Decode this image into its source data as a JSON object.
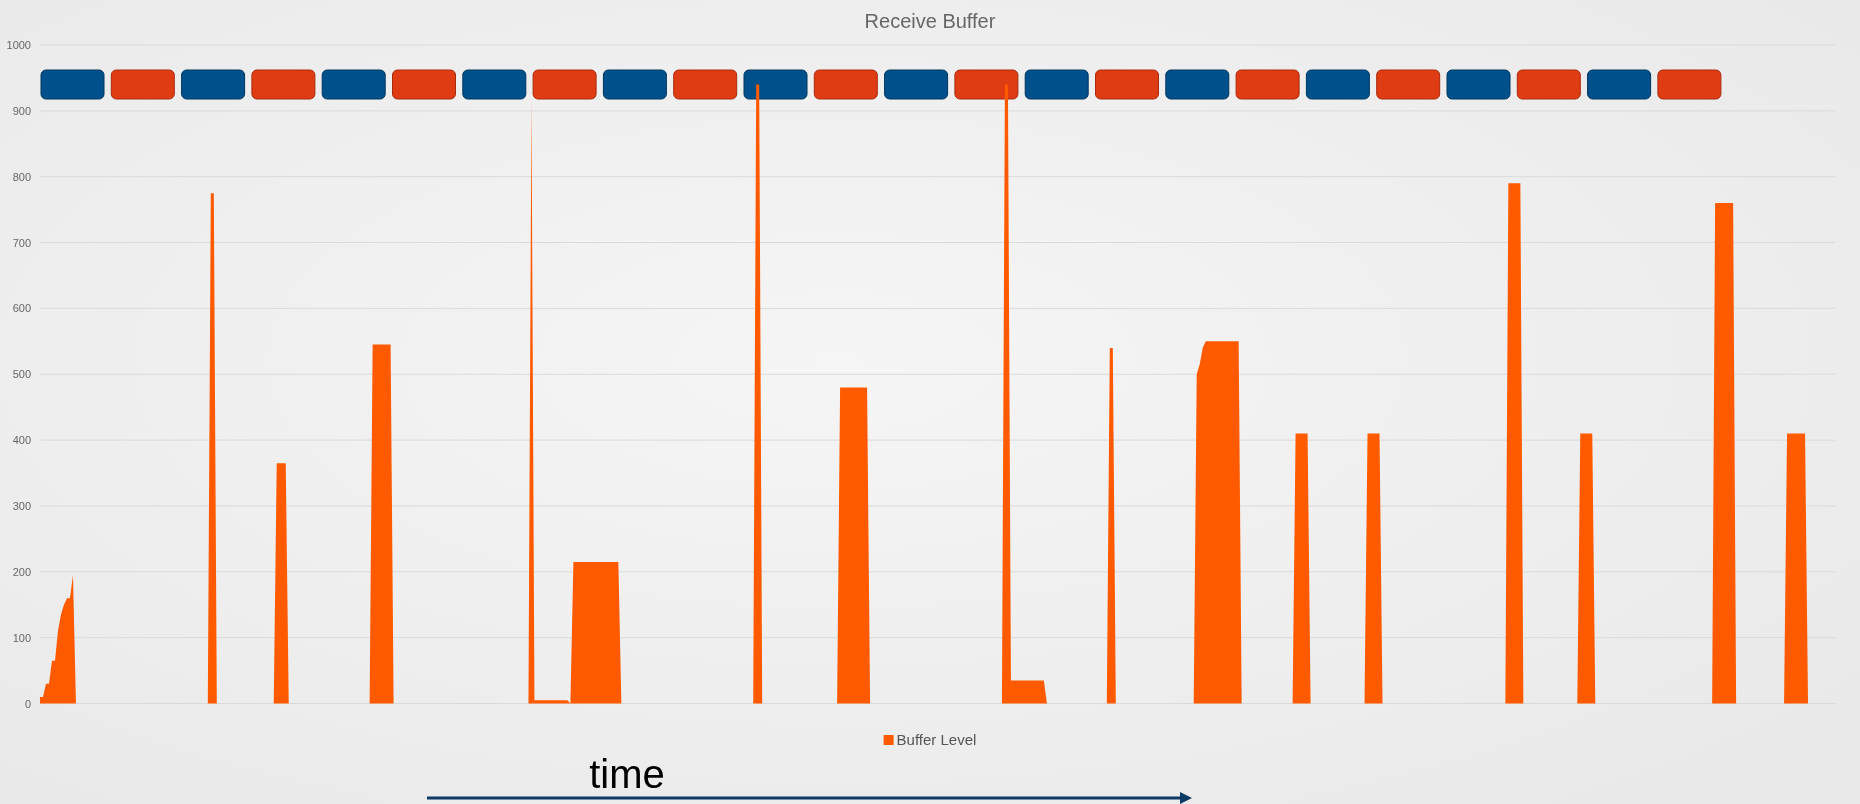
{
  "chart_data": {
    "type": "area",
    "title": "Receive Buffer",
    "annotations": [
      "time"
    ],
    "ylim": [
      0,
      1000
    ],
    "yticks": [
      0,
      100,
      200,
      300,
      400,
      500,
      600,
      700,
      800,
      900,
      1000
    ],
    "grid": "y",
    "legend": "bottom",
    "categories": [
      null,
      null,
      null,
      null,
      null,
      null,
      null,
      null,
      null,
      null,
      null,
      null,
      null,
      null,
      null,
      null,
      null,
      null,
      null,
      null,
      null,
      null,
      null,
      null,
      null,
      null,
      null,
      null,
      null,
      null,
      null,
      null,
      null,
      null,
      null,
      null,
      null,
      null,
      null,
      null,
      null,
      null,
      null,
      null,
      null,
      null,
      null,
      null,
      null,
      null,
      null,
      null,
      null,
      null,
      null,
      null,
      null,
      null,
      null,
      null,
      null,
      null,
      null,
      null,
      null,
      null,
      null,
      null,
      null,
      null,
      null,
      null,
      null,
      null,
      null,
      null,
      null,
      null,
      null,
      null,
      null,
      null,
      null,
      null,
      null,
      null,
      null,
      null,
      null,
      null,
      null,
      null,
      null,
      null,
      null,
      null,
      null,
      null,
      null,
      null,
      null,
      null,
      null,
      null,
      null,
      null,
      null,
      null,
      null,
      null,
      null,
      null,
      null,
      null,
      null,
      null,
      null,
      null,
      null,
      null,
      null,
      null,
      null,
      null,
      null,
      null,
      null,
      null,
      null,
      null,
      null,
      null,
      null,
      null,
      null,
      null,
      null,
      null,
      null,
      null,
      null,
      null,
      null,
      null,
      null,
      null,
      null,
      null,
      null,
      null,
      null,
      null,
      null,
      null,
      null,
      null,
      null,
      null,
      null,
      null,
      null,
      null,
      null,
      null,
      null,
      null,
      null,
      null,
      null,
      null,
      null,
      null,
      null,
      null,
      null,
      null,
      null,
      null,
      null,
      null,
      null,
      null,
      null,
      null,
      null,
      null,
      null,
      null,
      null,
      null,
      null,
      null,
      null,
      null,
      null,
      null,
      null,
      null,
      null,
      null,
      null,
      null,
      null,
      null,
      null,
      null,
      null,
      null,
      null,
      null,
      null,
      null,
      null,
      null,
      null,
      null,
      null,
      null,
      null,
      null,
      null,
      null,
      null,
      null,
      null,
      null,
      null,
      null,
      null,
      null,
      null,
      null,
      null,
      null,
      null,
      null,
      null,
      null,
      null,
      null,
      null,
      null,
      null,
      null,
      null,
      null,
      null,
      null,
      null,
      null,
      null,
      null,
      null,
      null,
      null,
      null,
      null,
      null,
      null,
      null,
      null,
      null,
      null,
      null,
      null,
      null,
      null,
      null,
      null,
      null,
      null,
      null,
      null,
      null,
      null,
      null,
      null,
      null,
      null,
      null,
      null,
      null,
      null,
      null,
      null,
      null,
      null,
      null,
      null,
      null,
      null,
      null,
      null,
      null,
      null,
      null,
      null,
      null,
      null,
      null,
      null,
      null,
      null,
      null,
      null,
      null,
      null,
      null,
      null,
      null,
      null,
      null,
      null,
      null,
      null,
      null,
      null,
      null,
      null,
      null,
      null,
      null,
      null,
      null,
      null,
      null,
      null,
      null,
      null,
      null,
      null,
      null,
      null,
      null,
      null,
      null,
      null,
      null,
      null,
      null,
      null,
      null,
      null,
      null,
      null,
      null,
      null,
      null,
      null,
      null,
      null,
      null,
      null,
      null,
      null,
      null,
      null,
      null,
      null,
      null,
      null,
      null,
      null,
      null,
      null,
      null,
      null,
      null,
      null,
      null,
      null,
      null,
      null,
      null,
      null,
      null,
      null,
      null,
      null,
      null,
      null,
      null,
      null,
      null,
      null,
      null,
      null,
      null,
      null,
      null,
      null,
      null,
      null,
      null,
      null,
      null,
      null,
      null,
      null,
      null,
      null,
      null,
      null,
      null,
      null,
      null,
      null,
      null,
      null,
      null,
      null,
      null,
      null,
      null,
      null,
      null,
      null,
      null,
      null,
      null,
      null,
      null,
      null,
      null,
      null,
      null,
      null,
      null,
      null,
      null,
      null,
      null,
      null,
      null,
      null,
      null,
      null,
      null,
      null,
      null,
      null,
      null,
      null,
      null,
      null,
      null,
      null,
      null,
      null,
      null,
      null,
      null,
      null,
      null,
      null,
      null,
      null,
      null,
      null,
      null,
      null,
      null,
      null,
      null,
      null,
      null,
      null,
      null,
      null,
      null,
      null,
      null,
      null,
      null,
      null,
      null,
      null,
      null,
      null,
      null,
      null,
      null,
      null,
      null,
      null,
      null,
      null,
      null,
      null,
      null,
      null,
      null,
      null,
      null,
      null,
      null,
      null,
      null,
      null,
      null,
      null,
      null,
      null,
      null,
      null,
      null,
      null,
      null,
      null,
      null,
      null,
      null,
      null,
      null,
      null,
      null,
      null,
      null,
      null,
      null,
      null,
      null,
      null,
      null,
      null,
      null,
      null,
      null,
      null,
      null,
      null,
      null,
      null,
      null,
      null,
      null,
      null,
      null,
      null,
      null,
      null,
      null,
      null,
      null,
      null,
      null,
      null,
      null,
      null,
      null,
      null,
      null,
      null,
      null,
      null,
      null,
      null,
      null,
      null,
      null,
      null,
      null,
      null,
      null,
      null,
      null,
      null,
      null,
      null,
      null,
      null,
      null,
      null,
      null,
      null,
      null,
      null,
      null,
      null,
      null,
      null,
      null,
      null,
      null,
      null,
      null,
      null,
      null,
      null,
      null,
      null,
      null,
      null,
      null,
      null,
      null,
      null,
      null,
      null,
      null
    ],
    "series": [
      {
        "name": "Buffer Level",
        "color": "#ff5a00",
        "values": [
          10,
          10,
          30,
          30,
          65,
          65,
          110,
          135,
          150,
          160,
          160,
          195,
          0,
          0,
          0,
          0,
          0,
          0,
          0,
          0,
          0,
          0,
          0,
          0,
          0,
          0,
          0,
          0,
          0,
          0,
          0,
          0,
          0,
          0,
          0,
          0,
          0,
          0,
          0,
          0,
          0,
          0,
          0,
          0,
          0,
          0,
          0,
          0,
          0,
          0,
          0,
          0,
          0,
          0,
          0,
          0,
          0,
          775,
          775,
          0,
          0,
          0,
          0,
          0,
          0,
          0,
          0,
          0,
          0,
          0,
          0,
          0,
          0,
          0,
          0,
          0,
          0,
          0,
          0,
          365,
          365,
          365,
          365,
          0,
          0,
          0,
          0,
          0,
          0,
          0,
          0,
          0,
          0,
          0,
          0,
          0,
          0,
          0,
          0,
          0,
          0,
          0,
          0,
          0,
          0,
          0,
          0,
          0,
          0,
          0,
          0,
          545,
          545,
          545,
          545,
          545,
          545,
          545,
          0,
          0,
          0,
          0,
          0,
          0,
          0,
          0,
          0,
          0,
          0,
          0,
          0,
          0,
          0,
          0,
          0,
          0,
          0,
          0,
          0,
          0,
          0,
          0,
          0,
          0,
          0,
          0,
          0,
          0,
          0,
          0,
          0,
          0,
          0,
          0,
          0,
          0,
          0,
          0,
          0,
          0,
          0,
          0,
          0,
          0,
          915,
          5,
          5,
          5,
          5,
          5,
          5,
          5,
          5,
          5,
          5,
          5,
          5,
          0,
          215,
          215,
          215,
          215,
          215,
          215,
          215,
          215,
          215,
          215,
          215,
          215,
          215,
          215,
          215,
          215,
          0,
          0,
          0,
          0,
          0,
          0,
          0,
          0,
          0,
          0,
          0,
          0,
          0,
          0,
          0,
          0,
          0,
          0,
          0,
          0,
          0,
          0,
          0,
          0,
          0,
          0,
          0,
          0,
          0,
          0,
          0,
          0,
          0,
          0,
          0,
          0,
          0,
          0,
          0,
          0,
          0,
          0,
          0,
          0,
          0,
          940,
          940,
          0,
          0,
          0,
          0,
          0,
          0,
          0,
          0,
          0,
          0,
          0,
          0,
          0,
          0,
          0,
          0,
          0,
          0,
          0,
          0,
          0,
          0,
          0,
          0,
          0,
          0,
          480,
          480,
          480,
          480,
          480,
          480,
          480,
          480,
          480,
          480,
          0,
          0,
          0,
          0,
          0,
          0,
          0,
          0,
          0,
          0,
          0,
          0,
          0,
          0,
          0,
          0,
          0,
          0,
          0,
          0,
          0,
          0,
          0,
          0,
          0,
          0,
          0,
          0,
          0,
          0,
          0,
          0,
          0,
          0,
          0,
          0,
          0,
          0,
          0,
          0,
          0,
          0,
          0,
          0,
          0,
          940,
          940,
          35,
          35,
          35,
          35,
          35,
          35,
          35,
          35,
          35,
          35,
          35,
          35,
          0,
          0,
          0,
          0,
          0,
          0,
          0,
          0,
          0,
          0,
          0,
          0,
          0,
          0,
          0,
          0,
          0,
          0,
          0,
          0,
          0,
          540,
          540,
          0,
          0,
          0,
          0,
          0,
          0,
          0,
          0,
          0,
          0,
          0,
          0,
          0,
          0,
          0,
          0,
          0,
          0,
          0,
          0,
          0,
          0,
          0,
          0,
          0,
          0,
          0,
          500,
          515,
          540,
          550,
          550,
          550,
          550,
          550,
          550,
          550,
          550,
          550,
          550,
          550,
          550,
          0,
          0,
          0,
          0,
          0,
          0,
          0,
          0,
          0,
          0,
          0,
          0,
          0,
          0,
          0,
          0,
          0,
          0,
          410,
          410,
          410,
          410,
          410,
          0,
          0,
          0,
          0,
          0,
          0,
          0,
          0,
          0,
          0,
          0,
          0,
          0,
          0,
          0,
          0,
          0,
          0,
          0,
          410,
          410,
          410,
          410,
          410,
          0,
          0,
          0,
          0,
          0,
          0,
          0,
          0,
          0,
          0,
          0,
          0,
          0,
          0,
          0,
          0,
          0,
          0,
          0,
          0,
          0,
          0,
          0,
          0,
          0,
          0,
          0,
          0,
          0,
          0,
          0,
          0,
          0,
          0,
          0,
          0,
          0,
          0,
          0,
          0,
          0,
          0,
          790,
          790,
          790,
          790,
          790,
          0,
          0,
          0,
          0,
          0,
          0,
          0,
          0,
          0,
          0,
          0,
          0,
          0,
          0,
          0,
          0,
          0,
          0,
          0,
          410,
          410,
          410,
          410,
          410,
          0,
          0,
          0,
          0,
          0,
          0,
          0,
          0,
          0,
          0,
          0,
          0,
          0,
          0,
          0,
          0,
          0,
          0,
          0,
          0,
          0,
          0,
          0,
          0,
          0,
          0,
          0,
          0,
          0,
          0,
          0,
          0,
          0,
          0,
          0,
          0,
          0,
          0,
          0,
          0,
          760,
          760,
          760,
          760,
          760,
          760,
          760,
          0,
          0,
          0,
          0,
          0,
          0,
          0,
          0,
          0,
          0,
          0,
          0,
          0,
          0,
          0,
          0,
          0,
          410,
          410,
          410,
          410,
          410,
          410,
          410,
          0,
          0,
          0,
          0,
          0,
          0,
          0,
          0,
          0,
          0
        ]
      }
    ]
  }
}
